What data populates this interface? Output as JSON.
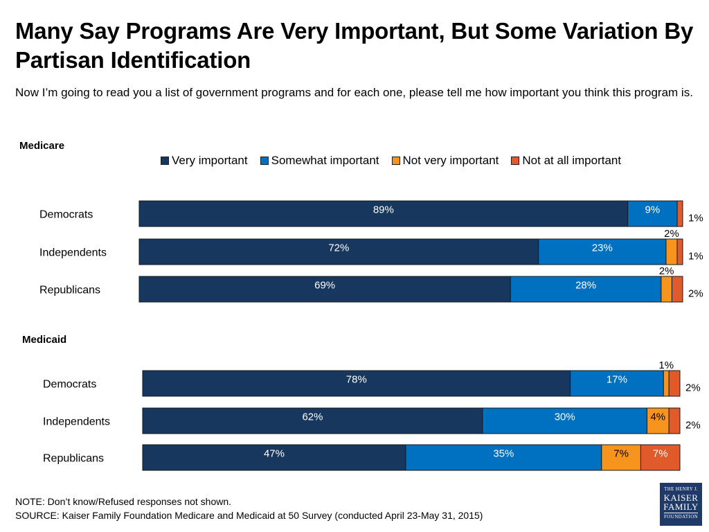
{
  "title": "Many Say Programs Are Very Important, But Some Variation By Partisan Identification",
  "subtitle": "Now I’m going to read you a list of government programs and for each one, please tell me how important you think this program is.",
  "note_line1": "NOTE: Don’t know/Refused responses not shown.",
  "note_line2": "SOURCE: Kaiser Family Foundation Medicare and Medicaid at 50 Survey (conducted April 23-May 31, 2015)",
  "logo": {
    "line1": "THE HENRY J.",
    "line2": "KAISER",
    "line3": "FAMILY",
    "line4": "FOUNDATION"
  },
  "colors": {
    "very_important": "#17375e",
    "somewhat_important": "#0070c0",
    "not_very_important": "#f7941d",
    "not_at_all_important": "#e05a2b"
  },
  "chart_data": [
    {
      "type": "bar",
      "orientation": "horizontal",
      "stacked": true,
      "title": "Medicare",
      "categories": [
        "Democrats",
        "Independents",
        "Republicans"
      ],
      "series": [
        {
          "name": "Very important",
          "values": [
            89,
            72,
            69
          ]
        },
        {
          "name": "Somewhat important",
          "values": [
            9,
            23,
            28
          ]
        },
        {
          "name": "Not very important",
          "values": [
            0,
            2,
            2
          ]
        },
        {
          "name": "Not at all important",
          "values": [
            1,
            1,
            2
          ]
        }
      ],
      "xlim": [
        0,
        100
      ],
      "legend_position": "top"
    },
    {
      "type": "bar",
      "orientation": "horizontal",
      "stacked": true,
      "title": "Medicaid",
      "categories": [
        "Democrats",
        "Independents",
        "Republicans"
      ],
      "series": [
        {
          "name": "Very important",
          "values": [
            78,
            62,
            47
          ]
        },
        {
          "name": "Somewhat important",
          "values": [
            17,
            30,
            35
          ]
        },
        {
          "name": "Not very important",
          "values": [
            1,
            4,
            7
          ]
        },
        {
          "name": "Not at all important",
          "values": [
            2,
            2,
            7
          ]
        }
      ],
      "xlim": [
        0,
        100
      ]
    }
  ]
}
